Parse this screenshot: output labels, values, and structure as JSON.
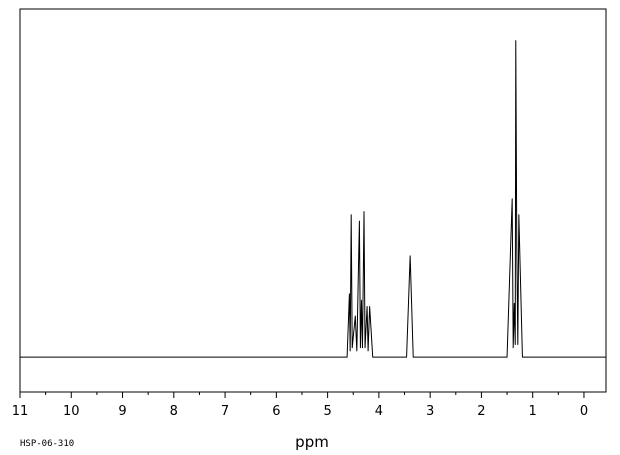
{
  "chart_data": {
    "type": "line",
    "x_label": "ppm",
    "annotation": "HSP-06-310",
    "x": [
      11,
      4.62,
      4.575,
      4.56,
      4.54,
      4.52,
      4.46,
      4.43,
      4.38,
      4.36,
      4.34,
      4.32,
      4.29,
      4.27,
      4.23,
      4.21,
      4.18,
      4.12,
      3.46,
      3.39,
      3.33,
      1.5,
      1.4,
      1.38,
      1.36,
      1.34,
      1.33,
      1.31,
      1.29,
      1.27,
      1.25,
      1.2,
      -0.43
    ],
    "values": [
      0,
      0,
      20,
      2,
      45,
      3,
      13,
      2,
      43,
      3,
      18,
      3,
      46,
      3,
      16,
      2,
      16,
      0,
      0,
      32,
      0,
      0,
      50,
      3,
      17,
      4,
      100,
      35,
      4,
      45,
      32,
      0,
      0
    ],
    "color": "#000000",
    "xlim": [
      11,
      -0.43
    ],
    "ylim": [
      -11,
      110
    ],
    "xticks": [
      11,
      10,
      9,
      8,
      7,
      6,
      5,
      4,
      3,
      2,
      1,
      0
    ]
  }
}
